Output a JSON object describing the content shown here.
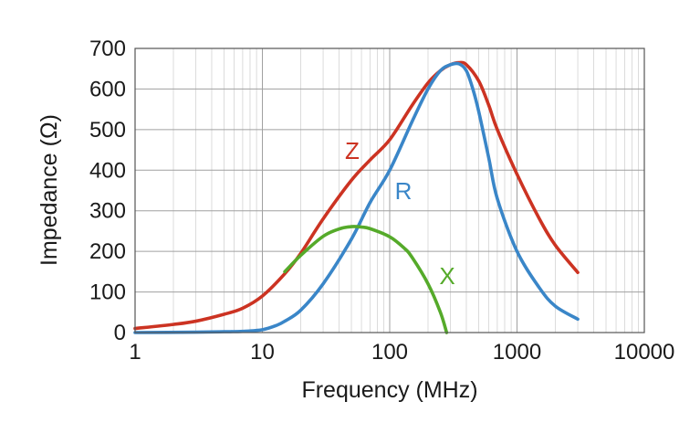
{
  "chart_data": {
    "type": "line",
    "title": "",
    "xlabel": "Frequency (MHz)",
    "ylabel": "Impedance (Ω)",
    "xscale": "log",
    "xlim": [
      1,
      10000
    ],
    "ylim": [
      0,
      700
    ],
    "grid": true,
    "x_ticks": [
      1,
      10,
      100,
      1000,
      10000
    ],
    "x_tick_labels": [
      "1",
      "10",
      "100",
      "1000",
      "10000"
    ],
    "y_ticks": [
      0,
      100,
      200,
      300,
      400,
      500,
      600,
      700
    ],
    "y_tick_labels": [
      "0",
      "100",
      "200",
      "300",
      "400",
      "500",
      "600",
      "700"
    ],
    "series": [
      {
        "name": "Z",
        "label": "Z",
        "color": "#cc3322",
        "x": [
          1,
          2,
          3,
          5,
          7,
          10,
          15,
          20,
          30,
          50,
          70,
          100,
          150,
          200,
          250,
          300,
          350,
          400,
          500,
          600,
          700,
          1000,
          1500,
          2000,
          3000
        ],
        "y": [
          10,
          20,
          28,
          45,
          60,
          90,
          145,
          195,
          280,
          375,
          425,
          475,
          560,
          615,
          645,
          660,
          665,
          660,
          620,
          560,
          500,
          390,
          280,
          215,
          148
        ]
      },
      {
        "name": "R",
        "label": "R",
        "color": "#3a86c8",
        "x": [
          1,
          3,
          5,
          7,
          10,
          13,
          15,
          20,
          30,
          50,
          70,
          100,
          150,
          200,
          250,
          300,
          350,
          400,
          450,
          500,
          600,
          700,
          1000,
          1500,
          2000,
          3000
        ],
        "y": [
          0,
          1,
          2,
          3,
          7,
          18,
          28,
          55,
          120,
          230,
          320,
          400,
          520,
          600,
          645,
          660,
          662,
          645,
          600,
          545,
          430,
          330,
          200,
          110,
          65,
          33
        ]
      },
      {
        "name": "X",
        "label": "X",
        "color": "#55aa2a",
        "x": [
          15,
          20,
          30,
          40,
          50,
          60,
          70,
          100,
          130,
          150,
          200,
          250,
          280
        ],
        "y": [
          150,
          190,
          237,
          255,
          261,
          260,
          256,
          236,
          208,
          185,
          120,
          50,
          0
        ]
      }
    ]
  }
}
